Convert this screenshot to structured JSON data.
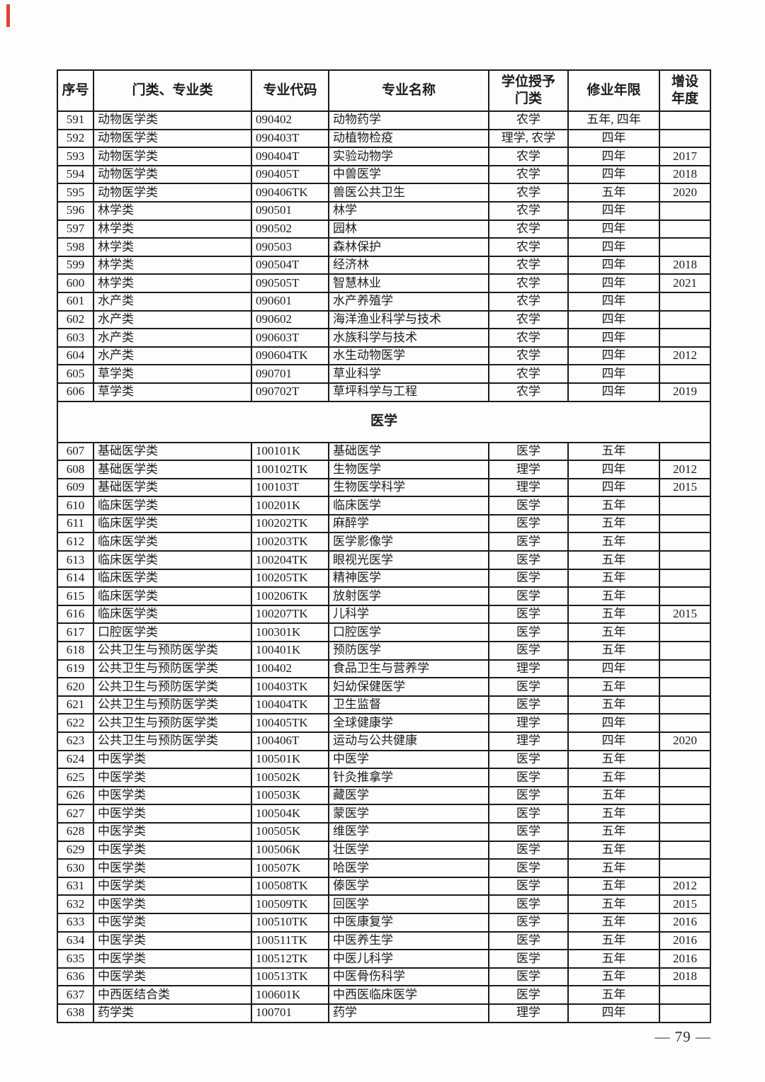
{
  "page": {
    "number_label": "— 79 —",
    "accent_color": "#e34234",
    "paper_color": "#fdfdfb"
  },
  "table": {
    "headers": [
      "序号",
      "门类、专业类",
      "专业代码",
      "专业名称",
      "学位授予\n门类",
      "修业年限",
      "增设\n年度"
    ],
    "rows": [
      {
        "type": "data",
        "cells": [
          "591",
          "动物医学类",
          "090402",
          "动物药学",
          "农学",
          "五年, 四年",
          ""
        ]
      },
      {
        "type": "data",
        "cells": [
          "592",
          "动物医学类",
          "090403T",
          "动植物检疫",
          "理学, 农学",
          "四年",
          ""
        ]
      },
      {
        "type": "data",
        "cells": [
          "593",
          "动物医学类",
          "090404T",
          "实验动物学",
          "农学",
          "四年",
          "2017"
        ]
      },
      {
        "type": "data",
        "cells": [
          "594",
          "动物医学类",
          "090405T",
          "中兽医学",
          "农学",
          "四年",
          "2018"
        ]
      },
      {
        "type": "data",
        "cells": [
          "595",
          "动物医学类",
          "090406TK",
          "兽医公共卫生",
          "农学",
          "五年",
          "2020"
        ]
      },
      {
        "type": "data",
        "cells": [
          "596",
          "林学类",
          "090501",
          "林学",
          "农学",
          "四年",
          ""
        ]
      },
      {
        "type": "data",
        "cells": [
          "597",
          "林学类",
          "090502",
          "园林",
          "农学",
          "四年",
          ""
        ]
      },
      {
        "type": "data",
        "cells": [
          "598",
          "林学类",
          "090503",
          "森林保护",
          "农学",
          "四年",
          ""
        ]
      },
      {
        "type": "data",
        "cells": [
          "599",
          "林学类",
          "090504T",
          "经济林",
          "农学",
          "四年",
          "2018"
        ]
      },
      {
        "type": "data",
        "cells": [
          "600",
          "林学类",
          "090505T",
          "智慧林业",
          "农学",
          "四年",
          "2021"
        ]
      },
      {
        "type": "data",
        "cells": [
          "601",
          "水产类",
          "090601",
          "水产养殖学",
          "农学",
          "四年",
          ""
        ]
      },
      {
        "type": "data",
        "cells": [
          "602",
          "水产类",
          "090602",
          "海洋渔业科学与技术",
          "农学",
          "四年",
          ""
        ]
      },
      {
        "type": "data",
        "cells": [
          "603",
          "水产类",
          "090603T",
          "水族科学与技术",
          "农学",
          "四年",
          ""
        ]
      },
      {
        "type": "data",
        "cells": [
          "604",
          "水产类",
          "090604TK",
          "水生动物医学",
          "农学",
          "四年",
          "2012"
        ]
      },
      {
        "type": "data",
        "cells": [
          "605",
          "草学类",
          "090701",
          "草业科学",
          "农学",
          "四年",
          ""
        ]
      },
      {
        "type": "data",
        "cells": [
          "606",
          "草学类",
          "090702T",
          "草坪科学与工程",
          "农学",
          "四年",
          "2019"
        ]
      },
      {
        "type": "section",
        "label": "医学"
      },
      {
        "type": "data",
        "cells": [
          "607",
          "基础医学类",
          "100101K",
          "基础医学",
          "医学",
          "五年",
          ""
        ]
      },
      {
        "type": "data",
        "cells": [
          "608",
          "基础医学类",
          "100102TK",
          "生物医学",
          "理学",
          "四年",
          "2012"
        ]
      },
      {
        "type": "data",
        "cells": [
          "609",
          "基础医学类",
          "100103T",
          "生物医学科学",
          "理学",
          "四年",
          "2015"
        ]
      },
      {
        "type": "data",
        "cells": [
          "610",
          "临床医学类",
          "100201K",
          "临床医学",
          "医学",
          "五年",
          ""
        ]
      },
      {
        "type": "data",
        "cells": [
          "611",
          "临床医学类",
          "100202TK",
          "麻醉学",
          "医学",
          "五年",
          ""
        ]
      },
      {
        "type": "data",
        "cells": [
          "612",
          "临床医学类",
          "100203TK",
          "医学影像学",
          "医学",
          "五年",
          ""
        ]
      },
      {
        "type": "data",
        "cells": [
          "613",
          "临床医学类",
          "100204TK",
          "眼视光医学",
          "医学",
          "五年",
          ""
        ]
      },
      {
        "type": "data",
        "cells": [
          "614",
          "临床医学类",
          "100205TK",
          "精神医学",
          "医学",
          "五年",
          ""
        ]
      },
      {
        "type": "data",
        "cells": [
          "615",
          "临床医学类",
          "100206TK",
          "放射医学",
          "医学",
          "五年",
          ""
        ]
      },
      {
        "type": "data",
        "cells": [
          "616",
          "临床医学类",
          "100207TK",
          "儿科学",
          "医学",
          "五年",
          "2015"
        ]
      },
      {
        "type": "data",
        "cells": [
          "617",
          "口腔医学类",
          "100301K",
          "口腔医学",
          "医学",
          "五年",
          ""
        ]
      },
      {
        "type": "data",
        "cells": [
          "618",
          "公共卫生与预防医学类",
          "100401K",
          "预防医学",
          "医学",
          "五年",
          ""
        ]
      },
      {
        "type": "data",
        "cells": [
          "619",
          "公共卫生与预防医学类",
          "100402",
          "食品卫生与营养学",
          "理学",
          "四年",
          ""
        ]
      },
      {
        "type": "data",
        "cells": [
          "620",
          "公共卫生与预防医学类",
          "100403TK",
          "妇幼保健医学",
          "医学",
          "五年",
          ""
        ]
      },
      {
        "type": "data",
        "cells": [
          "621",
          "公共卫生与预防医学类",
          "100404TK",
          "卫生监督",
          "医学",
          "五年",
          ""
        ]
      },
      {
        "type": "data",
        "cells": [
          "622",
          "公共卫生与预防医学类",
          "100405TK",
          "全球健康学",
          "理学",
          "四年",
          ""
        ]
      },
      {
        "type": "data",
        "cells": [
          "623",
          "公共卫生与预防医学类",
          "100406T",
          "运动与公共健康",
          "理学",
          "四年",
          "2020"
        ]
      },
      {
        "type": "data",
        "cells": [
          "624",
          "中医学类",
          "100501K",
          "中医学",
          "医学",
          "五年",
          ""
        ]
      },
      {
        "type": "data",
        "cells": [
          "625",
          "中医学类",
          "100502K",
          "针灸推拿学",
          "医学",
          "五年",
          ""
        ]
      },
      {
        "type": "data",
        "cells": [
          "626",
          "中医学类",
          "100503K",
          "藏医学",
          "医学",
          "五年",
          ""
        ]
      },
      {
        "type": "data",
        "cells": [
          "627",
          "中医学类",
          "100504K",
          "蒙医学",
          "医学",
          "五年",
          ""
        ]
      },
      {
        "type": "data",
        "cells": [
          "628",
          "中医学类",
          "100505K",
          "维医学",
          "医学",
          "五年",
          ""
        ]
      },
      {
        "type": "data",
        "cells": [
          "629",
          "中医学类",
          "100506K",
          "壮医学",
          "医学",
          "五年",
          ""
        ]
      },
      {
        "type": "data",
        "cells": [
          "630",
          "中医学类",
          "100507K",
          "哈医学",
          "医学",
          "五年",
          ""
        ]
      },
      {
        "type": "data",
        "cells": [
          "631",
          "中医学类",
          "100508TK",
          "傣医学",
          "医学",
          "五年",
          "2012"
        ]
      },
      {
        "type": "data",
        "cells": [
          "632",
          "中医学类",
          "100509TK",
          "回医学",
          "医学",
          "五年",
          "2015"
        ]
      },
      {
        "type": "data",
        "cells": [
          "633",
          "中医学类",
          "100510TK",
          "中医康复学",
          "医学",
          "五年",
          "2016"
        ]
      },
      {
        "type": "data",
        "cells": [
          "634",
          "中医学类",
          "100511TK",
          "中医养生学",
          "医学",
          "五年",
          "2016"
        ]
      },
      {
        "type": "data",
        "cells": [
          "635",
          "中医学类",
          "100512TK",
          "中医儿科学",
          "医学",
          "五年",
          "2016"
        ]
      },
      {
        "type": "data",
        "cells": [
          "636",
          "中医学类",
          "100513TK",
          "中医骨伤科学",
          "医学",
          "五年",
          "2018"
        ]
      },
      {
        "type": "data",
        "cells": [
          "637",
          "中西医结合类",
          "100601K",
          "中西医临床医学",
          "医学",
          "五年",
          ""
        ]
      },
      {
        "type": "data",
        "cells": [
          "638",
          "药学类",
          "100701",
          "药学",
          "理学",
          "四年",
          ""
        ]
      }
    ]
  }
}
